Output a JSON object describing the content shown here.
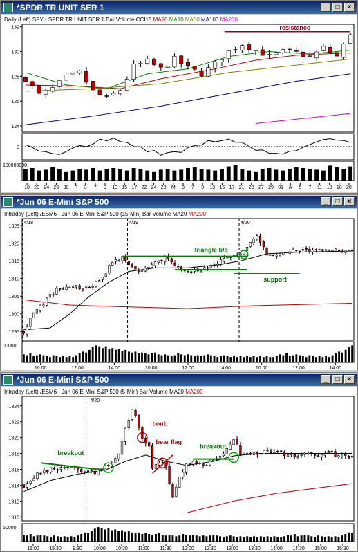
{
  "windows": [
    {
      "title": "*SPDR TR UNIT SER 1",
      "legend": [
        {
          "text": "Daily  (Left)",
          "color": "#000000"
        },
        {
          "text": "SPY - SPDR TR UNIT SER 1  Bar  Volume  CCI15",
          "color": "#000000"
        },
        {
          "text": "MA20",
          "color": "#c00000"
        },
        {
          "text": "MA10",
          "color": "#008000"
        },
        {
          "text": "MA50",
          "color": "#808000"
        },
        {
          "text": "MA100",
          "color": "#000080"
        },
        {
          "text": "MA200",
          "color": "#e000c0"
        }
      ],
      "price_ticks": [
        "132",
        "130",
        "128",
        "126",
        "124"
      ],
      "volume_label": "100000000",
      "cci_label": "0",
      "x_labels": [
        "18",
        "20",
        "24",
        "26",
        "30",
        "F",
        "3",
        "7",
        "9",
        "13",
        "15",
        "17",
        "22",
        "24",
        "28",
        "M",
        "3",
        "7",
        "9",
        "13",
        "15",
        "17",
        "21",
        "23",
        "27",
        "29",
        "31",
        "A",
        "5",
        "7",
        "11",
        "13",
        "18",
        "20"
      ],
      "annotations": [
        {
          "text": "resistance",
          "color": "#a00020"
        }
      ]
    },
    {
      "title": "*Jun 06  E-Mini S&P 500",
      "legend": [
        {
          "text": "Intraday  (Left)",
          "color": "#000000"
        },
        {
          "text": "/ESM6 - Jun 06  E-Mini S&P 500  (15-Min)  Bar  Volume",
          "color": "#000000"
        },
        {
          "text": "MA20",
          "color": "#000000"
        },
        {
          "text": "MA200",
          "color": "#c00000"
        }
      ],
      "price_ticks": [
        "1325",
        "1320",
        "1315",
        "1310",
        "1305",
        "1300",
        "1295"
      ],
      "volume_label": "00000",
      "date_markers": [
        "4/18",
        "4/19",
        "4/20"
      ],
      "x_labels": [
        "10:00",
        "12:00",
        "14:00",
        "10:00",
        "12:00",
        "14:00",
        "10:00",
        "12:00",
        "14:00"
      ],
      "annotations": [
        {
          "text": "triangle b/o",
          "color": "#008000"
        },
        {
          "text": "support",
          "color": "#006000"
        }
      ]
    },
    {
      "title": "*Jun 06  E-Mini S&P 500",
      "legend": [
        {
          "text": "Intraday  (Left)",
          "color": "#000000"
        },
        {
          "text": "/ESM6 - Jun 06  E-Mini S&P 500  (5-Min)  Bar  Volume",
          "color": "#000000"
        },
        {
          "text": "MA20",
          "color": "#000000"
        },
        {
          "text": "MA200",
          "color": "#c00000"
        }
      ],
      "price_ticks": [
        "1324",
        "1322",
        "1320",
        "1318",
        "1316",
        "1314",
        "1312",
        "1310"
      ],
      "volume_label": "50000",
      "date_markers": [
        "4/20"
      ],
      "x_labels": [
        "15:00",
        "15:30",
        "9:30",
        "10:00",
        "10:30",
        "11:00",
        "11:30",
        "12:00",
        "12:30",
        "13:00",
        "13:30",
        "14:00",
        "14:30",
        "15:00",
        "15:30"
      ],
      "annotations": [
        {
          "text": "breakout",
          "color": "#008000"
        },
        {
          "text": "cont.",
          "color": "#c00000"
        },
        {
          "text": "bear flag",
          "color": "#c00000"
        },
        {
          "text": "breakout",
          "color": "#008000"
        }
      ]
    }
  ],
  "chart_data": [
    {
      "type": "bar",
      "xlabel": "",
      "ylabel": "",
      "ylim": [
        123.5,
        132.2
      ],
      "close_path": [
        [
          0,
          127.8
        ],
        [
          2,
          126.5
        ],
        [
          4,
          127.0
        ],
        [
          6,
          127.9
        ],
        [
          8,
          128.3
        ],
        [
          10,
          126.8
        ],
        [
          12,
          126.2
        ],
        [
          14,
          126.9
        ],
        [
          16,
          128.8
        ],
        [
          18,
          129.2
        ],
        [
          20,
          128.6
        ],
        [
          22,
          129.4
        ],
        [
          24,
          128.7
        ],
        [
          26,
          128.2
        ],
        [
          28,
          129.0
        ],
        [
          30,
          130.0
        ],
        [
          32,
          130.6
        ],
        [
          34,
          130.1
        ],
        [
          36,
          129.6
        ],
        [
          38,
          130.0
        ],
        [
          40,
          129.9
        ],
        [
          42,
          129.5
        ],
        [
          44,
          130.3
        ],
        [
          46,
          129.6
        ],
        [
          47,
          130.5
        ],
        [
          48,
          131.5
        ]
      ],
      "ma_lines": [
        {
          "name": "MA20",
          "color": "#c00000",
          "points": [
            [
              0,
              127.3
            ],
            [
              8,
              127.2
            ],
            [
              14,
              127.0
            ],
            [
              20,
              127.8
            ],
            [
              28,
              128.6
            ],
            [
              34,
              129.3
            ],
            [
              40,
              129.7
            ],
            [
              48,
              129.9
            ]
          ]
        },
        {
          "name": "MA10",
          "color": "#008000",
          "points": [
            [
              0,
              128.3
            ],
            [
              6,
              127.3
            ],
            [
              12,
              127.0
            ],
            [
              18,
              128.2
            ],
            [
              24,
              128.6
            ],
            [
              30,
              129.6
            ],
            [
              36,
              130.0
            ],
            [
              42,
              129.8
            ],
            [
              48,
              130.1
            ]
          ]
        },
        {
          "name": "MA50",
          "color": "#808000",
          "points": [
            [
              0,
              126.8
            ],
            [
              10,
              127.0
            ],
            [
              20,
              127.4
            ],
            [
              30,
              128.3
            ],
            [
              40,
              128.9
            ],
            [
              48,
              129.4
            ]
          ]
        },
        {
          "name": "MA100",
          "color": "#000080",
          "points": [
            [
              0,
              124.1
            ],
            [
              10,
              124.8
            ],
            [
              20,
              125.6
            ],
            [
              30,
              126.6
            ],
            [
              40,
              127.6
            ],
            [
              48,
              128.2
            ]
          ]
        },
        {
          "name": "MA200",
          "color": "#e000c0",
          "points": [
            [
              34,
              124.2
            ],
            [
              48,
              125.0
            ]
          ]
        }
      ],
      "resistance": 131.6,
      "volume": [
        0.7,
        0.75,
        0.6,
        0.65,
        0.8,
        0.7,
        0.55,
        0.6,
        0.7,
        0.65,
        0.75,
        0.6,
        0.7,
        0.75,
        0.7,
        0.6,
        0.75,
        0.7,
        0.6,
        0.55,
        0.65,
        0.7,
        0.6,
        0.65,
        0.75,
        0.8,
        0.7,
        0.65,
        0.6,
        0.7,
        0.85,
        0.95,
        0.7,
        0.6,
        0.55,
        0.7,
        0.75,
        0.65,
        0.6,
        0.7,
        0.8,
        0.75,
        0.7,
        0.65,
        0.6,
        0.9,
        0.8,
        0.7,
        0.85
      ]
    },
    {
      "type": "bar",
      "xlabel": "",
      "ylabel": "",
      "ylim": [
        1292.5,
        1327
      ],
      "close_path": [
        [
          0,
          1295
        ],
        [
          3,
          1300
        ],
        [
          6,
          1303
        ],
        [
          10,
          1307
        ],
        [
          15,
          1308
        ],
        [
          20,
          1307
        ],
        [
          24,
          1310
        ],
        [
          27,
          1315
        ],
        [
          30,
          1316
        ],
        [
          33,
          1313
        ],
        [
          36,
          1312
        ],
        [
          39,
          1314
        ],
        [
          43,
          1316
        ],
        [
          47,
          1313
        ],
        [
          52,
          1312
        ],
        [
          56,
          1313
        ],
        [
          60,
          1315
        ],
        [
          64,
          1316
        ],
        [
          66,
          1317
        ],
        [
          69,
          1320
        ],
        [
          71,
          1322
        ],
        [
          74,
          1317
        ],
        [
          78,
          1317
        ],
        [
          84,
          1318
        ],
        [
          90,
          1318
        ],
        [
          95,
          1318
        ],
        [
          100,
          1318
        ]
      ],
      "ma_lines": [
        {
          "name": "MA20",
          "color": "#000000",
          "points": [
            [
              0,
              1295.5
            ],
            [
              8,
              1296
            ],
            [
              14,
              1300
            ],
            [
              20,
              1305
            ],
            [
              26,
              1309
            ],
            [
              32,
              1312
            ],
            [
              40,
              1313
            ],
            [
              50,
              1313
            ],
            [
              60,
              1314
            ],
            [
              66,
              1315
            ],
            [
              74,
              1317
            ],
            [
              84,
              1317.5
            ],
            [
              100,
              1317.8
            ]
          ]
        },
        {
          "name": "MA200",
          "color": "#c00000",
          "points": [
            [
              0,
              1304
            ],
            [
              14,
              1302.5
            ],
            [
              30,
              1302
            ],
            [
              50,
              1301.5
            ],
            [
              70,
              1302.3
            ],
            [
              100,
              1303
            ]
          ]
        }
      ],
      "triangle_top": 1316.3,
      "triangle_bottom": 1312.5,
      "support": 1311.5
    },
    {
      "type": "bar",
      "xlabel": "",
      "ylabel": "",
      "ylim": [
        1309.5,
        1325.2
      ],
      "close_path": [
        [
          0,
          1314
        ],
        [
          4,
          1315.5
        ],
        [
          8,
          1316
        ],
        [
          12,
          1316.3
        ],
        [
          16,
          1316
        ],
        [
          19,
          1315.5
        ],
        [
          22,
          1315.8
        ],
        [
          25,
          1316.5
        ],
        [
          28,
          1318
        ],
        [
          30,
          1321
        ],
        [
          32,
          1323.5
        ],
        [
          33,
          1322.5
        ],
        [
          35,
          1320
        ],
        [
          37,
          1319
        ],
        [
          38,
          1316
        ],
        [
          40,
          1317
        ],
        [
          42,
          1316.5
        ],
        [
          43,
          1314
        ],
        [
          44,
          1312.5
        ],
        [
          46,
          1315
        ],
        [
          48,
          1316.5
        ],
        [
          50,
          1317
        ],
        [
          54,
          1316.5
        ],
        [
          58,
          1317.5
        ],
        [
          60,
          1318.5
        ],
        [
          62,
          1319.8
        ],
        [
          64,
          1318
        ],
        [
          68,
          1318
        ],
        [
          72,
          1318.2
        ],
        [
          80,
          1317.8
        ],
        [
          90,
          1318
        ],
        [
          97,
          1317.6
        ]
      ],
      "ma_lines": [
        {
          "name": "MA20",
          "color": "#000000",
          "points": [
            [
              0,
              1313.2
            ],
            [
              8,
              1314.6
            ],
            [
              16,
              1315.4
            ],
            [
              24,
              1315.9
            ],
            [
              30,
              1317
            ],
            [
              36,
              1317.8
            ],
            [
              42,
              1317
            ],
            [
              48,
              1316.5
            ],
            [
              56,
              1317
            ],
            [
              62,
              1317.7
            ],
            [
              70,
              1318
            ],
            [
              80,
              1318
            ],
            [
              97,
              1318
            ]
          ]
        },
        {
          "name": "MA200",
          "color": "#c00000",
          "points": [
            [
              48,
              1310.5
            ],
            [
              62,
              1312
            ],
            [
              75,
              1313
            ],
            [
              97,
              1314.2
            ]
          ]
        }
      ],
      "volume": [
        0.45,
        0.4,
        0.5,
        0.35,
        0.4,
        0.45,
        0.4,
        0.35,
        0.3,
        0.4,
        0.35,
        0.3,
        0.35,
        0.3,
        0.35,
        0.3,
        0.4,
        0.5,
        0.6,
        0.55,
        0.7,
        0.85,
        0.95,
        0.9,
        0.8,
        0.9,
        0.75,
        0.8,
        0.7,
        0.75,
        0.65,
        0.7,
        0.6,
        0.55,
        0.6,
        0.5,
        0.55,
        0.5,
        0.45,
        0.5,
        0.55,
        0.45,
        0.4,
        0.45,
        0.4,
        0.35,
        0.4,
        0.5,
        0.45,
        0.4,
        0.45,
        0.4,
        0.35,
        0.4,
        0.35,
        0.4,
        0.45,
        0.4,
        0.35,
        0.3,
        0.35,
        0.4,
        0.35,
        0.3,
        0.35,
        0.3,
        0.35,
        0.3,
        0.35,
        0.3,
        0.35,
        0.3,
        0.35,
        0.3,
        0.35,
        0.3,
        0.3,
        0.35
      ]
    }
  ]
}
